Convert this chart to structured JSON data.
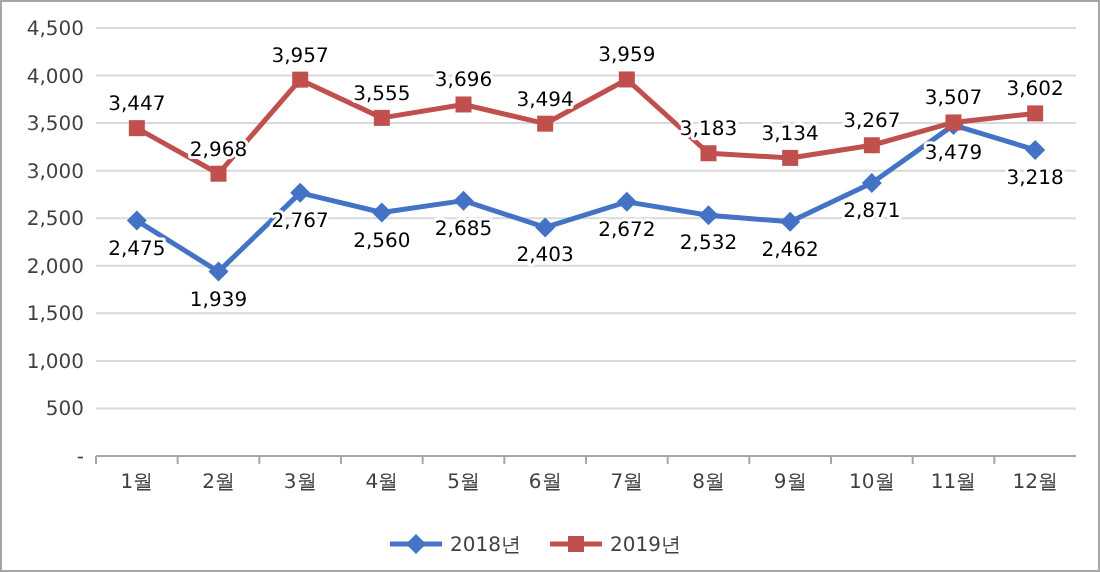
{
  "chart_data": {
    "type": "line",
    "categories": [
      "1월",
      "2월",
      "3월",
      "4월",
      "5월",
      "6월",
      "7월",
      "8월",
      "9월",
      "10월",
      "11월",
      "12월"
    ],
    "series": [
      {
        "name": "2018년",
        "color": "#4472c4",
        "marker": "diamond",
        "values": [
          2475,
          1939,
          2767,
          2560,
          2685,
          2403,
          2672,
          2532,
          2462,
          2871,
          3479,
          3218
        ],
        "value_labels": [
          "2,475",
          "1,939",
          "2,767",
          "2,560",
          "2,685",
          "2,403",
          "2,672",
          "2,532",
          "2,462",
          "2,871",
          "3,479",
          "3,218"
        ]
      },
      {
        "name": "2019년",
        "color": "#c0504d",
        "marker": "square",
        "values": [
          3447,
          2968,
          3957,
          3555,
          3696,
          3494,
          3959,
          3183,
          3134,
          3267,
          3507,
          3602
        ],
        "value_labels": [
          "3,447",
          "2,968",
          "3,957",
          "3,555",
          "3,696",
          "3,494",
          "3,959",
          "3,183",
          "3,134",
          "3,267",
          "3,507",
          "3,602"
        ]
      }
    ],
    "ylim": [
      0,
      4500
    ],
    "yticks": [
      {
        "value": 0,
        "label": "-"
      },
      {
        "value": 500,
        "label": "500"
      },
      {
        "value": 1000,
        "label": "1,000"
      },
      {
        "value": 1500,
        "label": "1,500"
      },
      {
        "value": 2000,
        "label": "2,000"
      },
      {
        "value": 2500,
        "label": "2,500"
      },
      {
        "value": 3000,
        "label": "3,000"
      },
      {
        "value": 3500,
        "label": "3,500"
      },
      {
        "value": 4000,
        "label": "4,000"
      },
      {
        "value": 4500,
        "label": "4,500"
      }
    ],
    "grid": "y",
    "legend": "bottom",
    "line_style": "solid"
  }
}
